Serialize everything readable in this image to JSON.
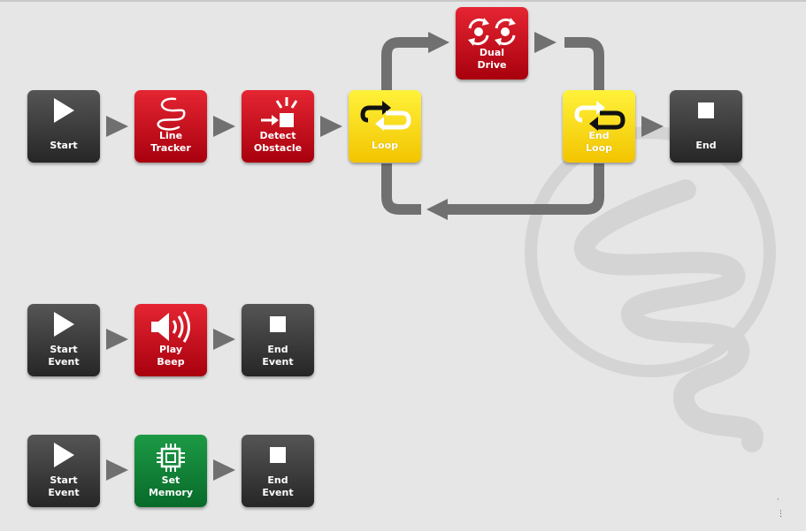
{
  "program": {
    "main": {
      "start": "Start",
      "line_tracker": "Line\nTracker",
      "detect_obstacle": "Detect\nObstacle",
      "loop": "Loop",
      "dual_drive": "Dual\nDrive",
      "end_loop": "End\nLoop",
      "end": "End"
    },
    "event1": {
      "start_event": "Start\nEvent",
      "play_beep": "Play\nBeep",
      "end_event": "End\nEvent"
    },
    "event2": {
      "start_event": "Start\nEvent",
      "set_memory": "Set\nMemory",
      "end_event": "End\nEvent"
    }
  },
  "icons": {
    "start": "play-icon",
    "line_tracker": "squiggle-line-icon",
    "detect_obstacle": "obstacle-detect-icon",
    "loop": "loop-icon",
    "dual_drive": "dual-rotate-icon",
    "end_loop": "end-loop-icon",
    "end": "stop-icon",
    "play_beep": "speaker-icon",
    "set_memory": "chip-icon"
  },
  "colors": {
    "background": "#e6e6e6",
    "block_gray": "#3a3a3a",
    "block_red": "#d0101e",
    "block_yellow": "#ffe21a",
    "block_green": "#12823a",
    "connector": "#707070",
    "watermark": "#d4d4d4"
  }
}
